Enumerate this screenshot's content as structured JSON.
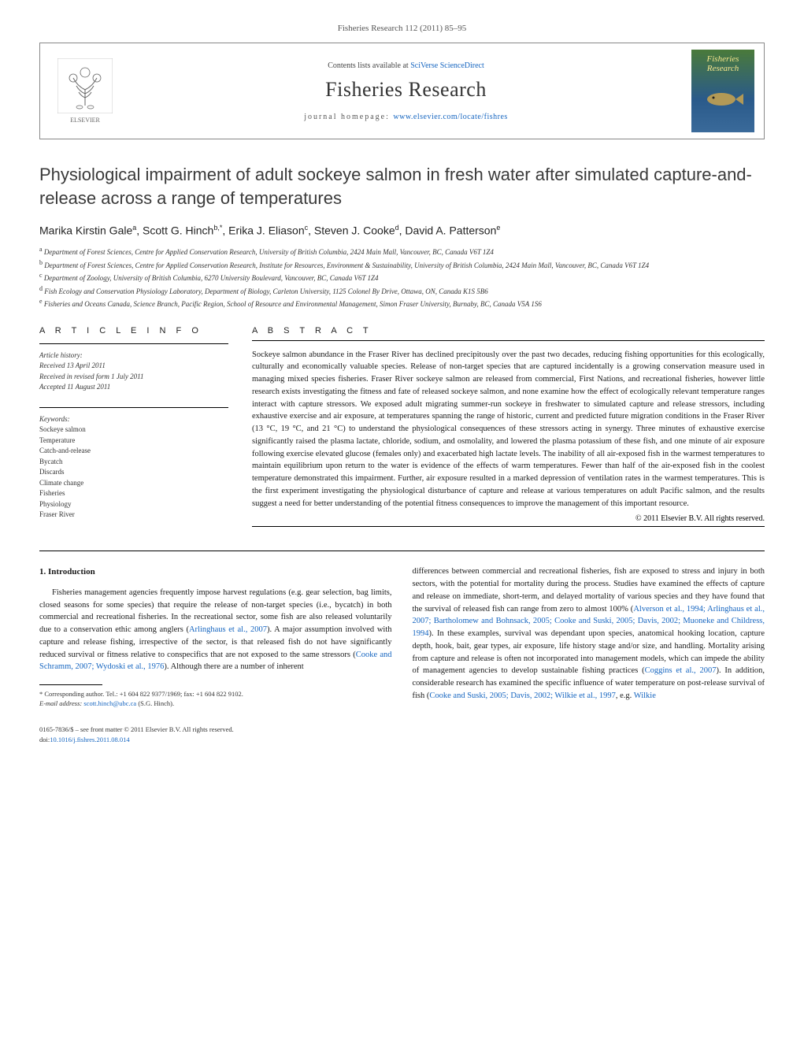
{
  "journal_header": "Fisheries Research 112 (2011) 85–95",
  "top_box": {
    "contents_prefix": "Contents lists available at ",
    "contents_link": "SciVerse ScienceDirect",
    "journal_name": "Fisheries Research",
    "homepage_prefix": "journal homepage: ",
    "homepage_link": "www.elsevier.com/locate/fishres",
    "elsevier_label": "ELSEVIER",
    "cover_title_1": "Fisheries",
    "cover_title_2": "Research"
  },
  "title": "Physiological impairment of adult sockeye salmon in fresh water after simulated capture-and-release across a range of temperatures",
  "authors_html": "Marika Kirstin Gale<sup>a</sup>, Scott G. Hinch<sup>b,*</sup>, Erika J. Eliason<sup>c</sup>, Steven J. Cooke<sup>d</sup>, David A. Patterson<sup>e</sup>",
  "affiliations": [
    "<sup>a</sup> Department of Forest Sciences, Centre for Applied Conservation Research, University of British Columbia, 2424 Main Mall, Vancouver, BC, Canada V6T 1Z4",
    "<sup>b</sup> Department of Forest Sciences, Centre for Applied Conservation Research, Institute for Resources, Environment & Sustainability, University of British Columbia, 2424 Main Mall, Vancouver, BC, Canada V6T 1Z4",
    "<sup>c</sup> Department of Zoology, University of British Columbia, 6270 University Boulevard, Vancouver, BC, Canada V6T 1Z4",
    "<sup>d</sup> Fish Ecology and Conservation Physiology Laboratory, Department of Biology, Carleton University, 1125 Colonel By Drive, Ottawa, ON, Canada K1S 5B6",
    "<sup>e</sup> Fisheries and Oceans Canada, Science Branch, Pacific Region, School of Resource and Environmental Management, Simon Fraser University, Burnaby, BC, Canada V5A 1S6"
  ],
  "section_labels": {
    "article_info": "A R T I C L E   I N F O",
    "abstract": "A B S T R A C T"
  },
  "history": {
    "label": "Article history:",
    "received": "Received 13 April 2011",
    "revised": "Received in revised form 1 July 2011",
    "accepted": "Accepted 11 August 2011"
  },
  "keywords": {
    "label": "Keywords:",
    "items": [
      "Sockeye salmon",
      "Temperature",
      "Catch-and-release",
      "Bycatch",
      "Discards",
      "Climate change",
      "Fisheries",
      "Physiology",
      "Fraser River"
    ]
  },
  "abstract": "Sockeye salmon abundance in the Fraser River has declined precipitously over the past two decades, reducing fishing opportunities for this ecologically, culturally and economically valuable species. Release of non-target species that are captured incidentally is a growing conservation measure used in managing mixed species fisheries. Fraser River sockeye salmon are released from commercial, First Nations, and recreational fisheries, however little research exists investigating the fitness and fate of released sockeye salmon, and none examine how the effect of ecologically relevant temperature ranges interact with capture stressors. We exposed adult migrating summer-run sockeye in freshwater to simulated capture and release stressors, including exhaustive exercise and air exposure, at temperatures spanning the range of historic, current and predicted future migration conditions in the Fraser River (13 °C, 19 °C, and 21 °C) to understand the physiological consequences of these stressors acting in synergy. Three minutes of exhaustive exercise significantly raised the plasma lactate, chloride, sodium, and osmolality, and lowered the plasma potassium of these fish, and one minute of air exposure following exercise elevated glucose (females only) and exacerbated high lactate levels. The inability of all air-exposed fish in the warmest temperatures to maintain equilibrium upon return to the water is evidence of the effects of warm temperatures. Fewer than half of the air-exposed fish in the coolest temperature demonstrated this impairment. Further, air exposure resulted in a marked depression of ventilation rates in the warmest temperatures. This is the first experiment investigating the physiological disturbance of capture and release at various temperatures on adult Pacific salmon, and the results suggest a need for better understanding of the potential fitness consequences to improve the management of this important resource.",
  "copyright": "© 2011 Elsevier B.V. All rights reserved.",
  "body": {
    "heading": "1.  Introduction",
    "left_para": "Fisheries management agencies frequently impose harvest regulations (e.g. gear selection, bag limits, closed seasons for some species) that require the release of non-target species (i.e., bycatch) in both commercial and recreational fisheries. In the recreational sector, some fish are also released voluntarily due to a conservation ethic among anglers (<span class=\"ref-link\">Arlinghaus et al., 2007</span>). A major assumption involved with capture and release fishing, irrespective of the sector, is that released fish do not have significantly reduced survival or fitness relative to conspecifics that are not exposed to the same stressors (<span class=\"ref-link\">Cooke and Schramm, 2007; Wydoski et al., 1976</span>). Although there are a number of inherent",
    "right_para": "differences between commercial and recreational fisheries, fish are exposed to stress and injury in both sectors, with the potential for mortality during the process. Studies have examined the effects of capture and release on immediate, short-term, and delayed mortality of various species and they have found that the survival of released fish can range from zero to almost 100% (<span class=\"ref-link\">Alverson et al., 1994; Arlinghaus et al., 2007; Bartholomew and Bohnsack, 2005; Cooke and Suski, 2005; Davis, 2002; Muoneke and Childress, 1994</span>). In these examples, survival was dependant upon species, anatomical hooking location, capture depth, hook, bait, gear types, air exposure, life history stage and/or size, and handling. Mortality arising from capture and release is often not incorporated into management models, which can impede the ability of management agencies to develop sustainable fishing practices (<span class=\"ref-link\">Coggins et al., 2007</span>). In addition, considerable research has examined the specific influence of water temperature on post-release survival of fish (<span class=\"ref-link\">Cooke and Suski, 2005; Davis, 2002; Wilkie et al., 1997</span>, e.g. <span class=\"ref-link\">Wilkie</span>"
  },
  "footnote": {
    "corresponding": "* Corresponding author. Tel.: +1 604 822 9377/1969; fax: +1 604 822 9102.",
    "email_label": "E-mail address: ",
    "email": "scott.hinch@ubc.ca",
    "email_suffix": " (S.G. Hinch)."
  },
  "footer": {
    "issn_line": "0165-7836/$ – see front matter © 2011 Elsevier B.V. All rights reserved.",
    "doi_prefix": "doi:",
    "doi": "10.1016/j.fishres.2011.08.014"
  },
  "colors": {
    "link": "#1565c0",
    "text": "#1a1a1a",
    "border": "#888888"
  }
}
